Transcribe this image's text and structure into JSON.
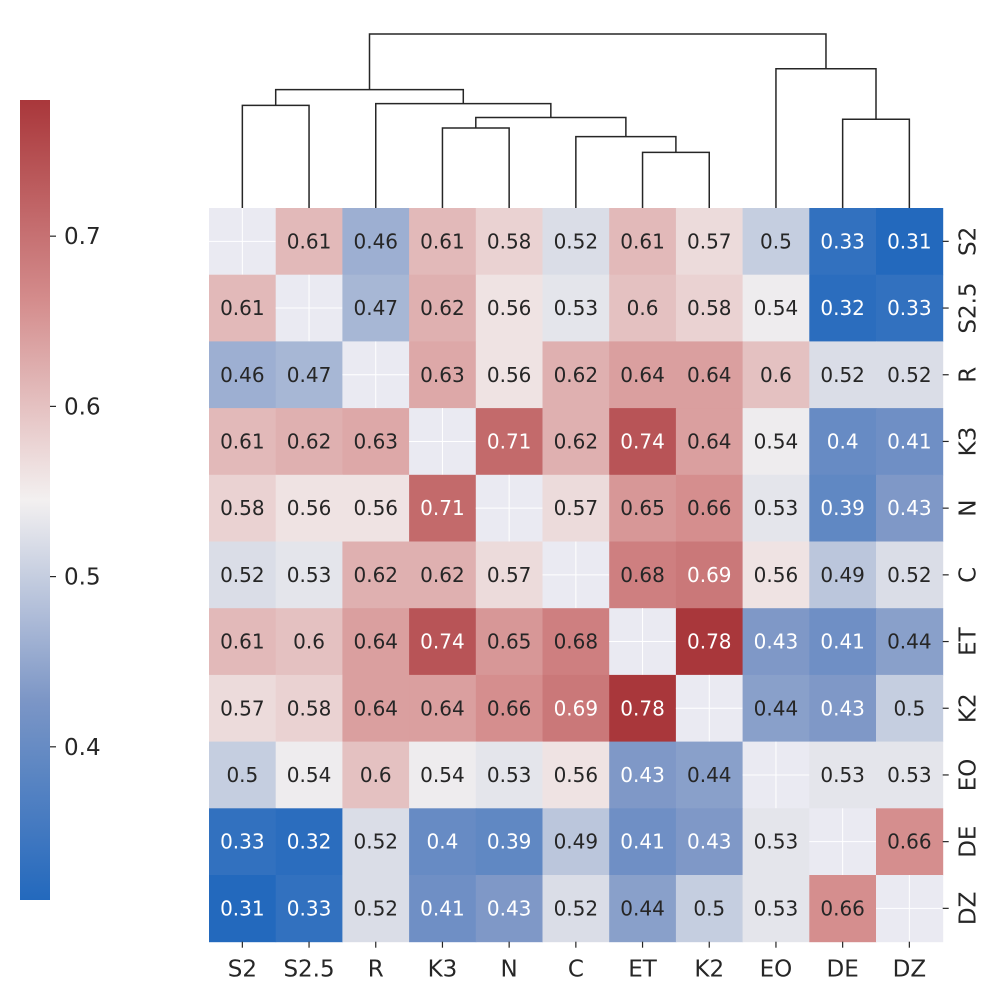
{
  "chart_data": {
    "type": "heatmap",
    "title": "",
    "xlabel": "",
    "ylabel": "",
    "labels": [
      "S2",
      "S2.5",
      "R",
      "K3",
      "N",
      "C",
      "ET",
      "K2",
      "EO",
      "DE",
      "DZ"
    ],
    "matrix": [
      [
        null,
        0.61,
        0.46,
        0.61,
        0.58,
        0.52,
        0.61,
        0.57,
        0.5,
        0.33,
        0.31
      ],
      [
        0.61,
        null,
        0.47,
        0.62,
        0.56,
        0.53,
        0.6,
        0.58,
        0.54,
        0.32,
        0.33
      ],
      [
        0.46,
        0.47,
        null,
        0.63,
        0.56,
        0.62,
        0.64,
        0.64,
        0.6,
        0.52,
        0.52
      ],
      [
        0.61,
        0.62,
        0.63,
        null,
        0.71,
        0.62,
        0.74,
        0.64,
        0.54,
        0.4,
        0.41
      ],
      [
        0.58,
        0.56,
        0.56,
        0.71,
        null,
        0.57,
        0.65,
        0.66,
        0.53,
        0.39,
        0.43
      ],
      [
        0.52,
        0.53,
        0.62,
        0.62,
        0.57,
        null,
        0.68,
        0.69,
        0.56,
        0.49,
        0.52
      ],
      [
        0.61,
        0.6,
        0.64,
        0.74,
        0.65,
        0.68,
        null,
        0.78,
        0.43,
        0.41,
        0.44
      ],
      [
        0.57,
        0.58,
        0.64,
        0.64,
        0.66,
        0.69,
        0.78,
        null,
        0.44,
        0.43,
        0.5
      ],
      [
        0.5,
        0.54,
        0.6,
        0.54,
        0.53,
        0.56,
        0.43,
        0.44,
        null,
        0.53,
        0.53
      ],
      [
        0.33,
        0.32,
        0.52,
        0.4,
        0.39,
        0.49,
        0.41,
        0.43,
        0.53,
        null,
        0.66
      ],
      [
        0.31,
        0.33,
        0.52,
        0.41,
        0.43,
        0.52,
        0.44,
        0.5,
        0.53,
        0.66,
        null
      ]
    ],
    "display_text": [
      [
        "",
        "0.61",
        "0.46",
        "0.61",
        "0.58",
        "0.52",
        "0.61",
        "0.57",
        "0.5",
        "0.33",
        "0.31"
      ],
      [
        "0.61",
        "",
        "0.47",
        "0.62",
        "0.56",
        "0.53",
        "0.6",
        "0.58",
        "0.54",
        "0.32",
        "0.33"
      ],
      [
        "0.46",
        "0.47",
        "",
        "0.63",
        "0.56",
        "0.62",
        "0.64",
        "0.64",
        "0.6",
        "0.52",
        "0.52"
      ],
      [
        "0.61",
        "0.62",
        "0.63",
        "",
        "0.71",
        "0.62",
        "0.74",
        "0.64",
        "0.54",
        "0.4",
        "0.41"
      ],
      [
        "0.58",
        "0.56",
        "0.56",
        "0.71",
        "",
        "0.57",
        "0.65",
        "0.66",
        "0.53",
        "0.39",
        "0.43"
      ],
      [
        "0.52",
        "0.53",
        "0.62",
        "0.62",
        "0.57",
        "",
        "0.68",
        "0.69",
        "0.56",
        "0.49",
        "0.52"
      ],
      [
        "0.61",
        "0.6",
        "0.64",
        "0.74",
        "0.65",
        "0.68",
        "",
        "0.78",
        "0.43",
        "0.41",
        "0.44"
      ],
      [
        "0.57",
        "0.58",
        "0.64",
        "0.64",
        "0.66",
        "0.69",
        "0.78",
        "",
        "0.44",
        "0.43",
        "0.5"
      ],
      [
        "0.5",
        "0.54",
        "0.6",
        "0.54",
        "0.53",
        "0.56",
        "0.43",
        "0.44",
        "",
        "0.53",
        "0.53"
      ],
      [
        "0.33",
        "0.32",
        "0.52",
        "0.4",
        "0.39",
        "0.49",
        "0.41",
        "0.43",
        "0.53",
        "",
        "0.66"
      ],
      [
        "0.31",
        "0.33",
        "0.52",
        "0.41",
        "0.43",
        "0.52",
        "0.44",
        "0.5",
        "0.53",
        "0.66",
        ""
      ]
    ],
    "colormap": "vlag",
    "vmin": 0.31,
    "vmax": 0.78,
    "colorbar": {
      "ticks": [
        0.4,
        0.5,
        0.6,
        0.7
      ],
      "tick_labels": [
        "0.4",
        "0.5",
        "0.6",
        "0.7"
      ],
      "placement": "left"
    },
    "dendrogram": {
      "placement": "top",
      "merges": [
        {
          "left": "C",
          "right": [
            "ET",
            "K2"
          ],
          "height": 0.41
        },
        {
          "left": [
            "K3",
            "N"
          ],
          "right": [
            "C",
            "ET",
            "K2"
          ],
          "height": 0.52
        },
        {
          "left": "R",
          "right": [
            "K3",
            "N",
            "C",
            "ET",
            "K2"
          ],
          "height": 0.6
        },
        {
          "left": [
            "S2",
            "S2.5"
          ],
          "right": [
            "R",
            "K3",
            "N",
            "C",
            "ET",
            "K2"
          ],
          "height": 0.68
        },
        {
          "left": "EO",
          "right": [
            "DE",
            "DZ"
          ],
          "height": 0.8
        },
        {
          "left": [
            "S2",
            "S2.5",
            "R",
            "K3",
            "N",
            "C",
            "ET",
            "K2"
          ],
          "right": [
            "EO",
            "DE",
            "DZ"
          ],
          "height": 1.0
        },
        {
          "pair": [
            "S2",
            "S2.5"
          ],
          "height": 0.59
        },
        {
          "pair": [
            "K3",
            "N"
          ],
          "height": 0.46
        },
        {
          "pair": [
            "ET",
            "K2"
          ],
          "height": 0.32
        },
        {
          "pair": [
            "DE",
            "DZ"
          ],
          "height": 0.51
        }
      ]
    },
    "colors": {
      "low": "#2369bd",
      "mid": "#f3f0f0",
      "high": "#a9373b",
      "line": "#262626"
    }
  }
}
